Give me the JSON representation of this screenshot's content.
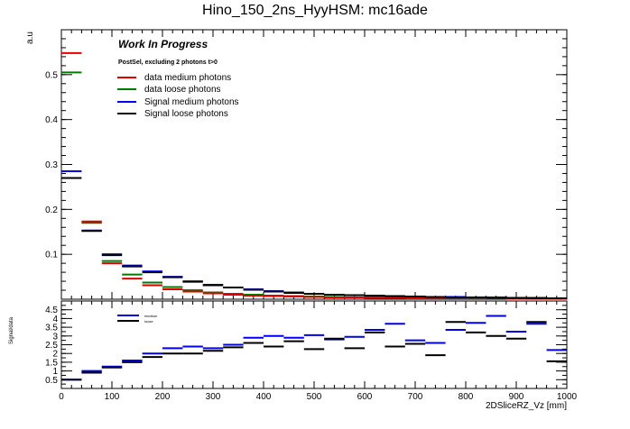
{
  "title": "Hino_150_2ns_HyyHSM: mc16ade",
  "chart_data": [
    {
      "type": "histogram",
      "ylabel": "a.u",
      "xlabel": "",
      "xlim": [
        0,
        1000
      ],
      "ylim": [
        0,
        0.6
      ],
      "y_ticks": [
        0.1,
        0.2,
        0.3,
        0.4,
        0.5
      ],
      "bin_width": 40,
      "bin_centers": [
        20,
        60,
        100,
        140,
        180,
        220,
        260,
        300,
        340,
        380,
        420,
        460,
        500,
        540,
        580,
        620,
        660,
        700,
        740,
        780,
        820,
        860,
        900,
        940,
        980
      ],
      "annotation_title": "Work In Progress",
      "annotation_subtitle": "PostSel, excluding 2 photons t>0",
      "legend_position": "top-left",
      "series": [
        {
          "name": "data medium photons",
          "color": "#e00000",
          "values": [
            0.548,
            0.173,
            0.08,
            0.046,
            0.031,
            0.022,
            0.017,
            0.013,
            0.01,
            0.008,
            0.007,
            0.006,
            0.005,
            0.004,
            0.004,
            0.003,
            0.003,
            0.002,
            0.002,
            0.002,
            0.002,
            0.002,
            0.001,
            0.001,
            0.001
          ]
        },
        {
          "name": "data loose photons",
          "color": "#007a00",
          "values": [
            0.505,
            0.17,
            0.085,
            0.055,
            0.037,
            0.027,
            0.02,
            0.015,
            0.012,
            0.01,
            0.008,
            0.007,
            0.006,
            0.005,
            0.004,
            0.004,
            0.003,
            0.003,
            0.003,
            0.002,
            0.002,
            0.002,
            0.002,
            0.001,
            0.001
          ]
        },
        {
          "name": "Signal medium photons",
          "color": "#0000ee",
          "values": [
            0.285,
            0.153,
            0.1,
            0.075,
            0.062,
            0.05,
            0.04,
            0.032,
            0.026,
            0.022,
            0.018,
            0.015,
            0.012,
            0.01,
            0.009,
            0.008,
            0.007,
            0.006,
            0.005,
            0.005,
            0.004,
            0.004,
            0.003,
            0.003,
            0.002
          ]
        },
        {
          "name": "Signal loose photons",
          "color": "#000000",
          "values": [
            0.27,
            0.152,
            0.098,
            0.073,
            0.06,
            0.049,
            0.039,
            0.031,
            0.026,
            0.021,
            0.017,
            0.014,
            0.012,
            0.01,
            0.009,
            0.008,
            0.007,
            0.006,
            0.005,
            0.004,
            0.004,
            0.003,
            0.003,
            0.002,
            0.002
          ]
        }
      ]
    },
    {
      "type": "histogram",
      "ylabel": "Signal/data",
      "xlabel": "2DSliceRZ_Vz [mm]",
      "xlim": [
        0,
        1000
      ],
      "ylim": [
        0,
        5
      ],
      "y_ticks": [
        0.5,
        1,
        1.5,
        2,
        2.5,
        3,
        3.5,
        4,
        4.5
      ],
      "x_ticks": [
        0,
        100,
        200,
        300,
        400,
        500,
        600,
        700,
        800,
        900,
        1000
      ],
      "bin_width": 40,
      "bin_centers": [
        20,
        60,
        100,
        140,
        180,
        220,
        260,
        300,
        340,
        380,
        420,
        460,
        500,
        540,
        580,
        620,
        660,
        700,
        740,
        780,
        820,
        860,
        900,
        940,
        980
      ],
      "legend_position": "top-left",
      "series": [
        {
          "name": "medium",
          "color": "#0000ee",
          "values": [
            0.5,
            1.0,
            1.25,
            1.6,
            2.0,
            2.3,
            2.4,
            2.3,
            2.5,
            2.9,
            3.0,
            2.9,
            3.05,
            2.8,
            2.95,
            3.35,
            3.7,
            2.75,
            2.6,
            3.35,
            3.75,
            4.15,
            3.25,
            3.7,
            2.2
          ]
        },
        {
          "name": "loose",
          "color": "#000000",
          "values": [
            0.5,
            0.9,
            1.2,
            1.5,
            1.8,
            2.0,
            2.0,
            2.15,
            2.35,
            2.6,
            2.4,
            2.7,
            2.25,
            2.85,
            2.3,
            3.2,
            2.4,
            2.55,
            1.9,
            3.8,
            3.2,
            3.0,
            2.85,
            3.8,
            1.55
          ]
        }
      ]
    }
  ]
}
